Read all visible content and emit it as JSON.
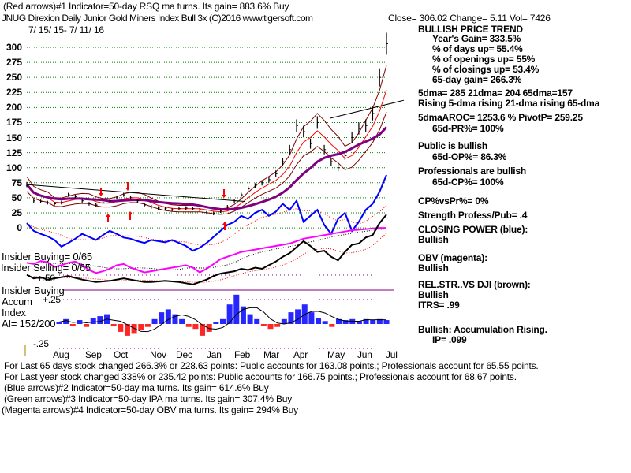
{
  "header": {
    "indicator1": "(Red arrows)#1 Indicator=50-day RSQ ma turns. Its gain= 883.6% Buy",
    "title": "JNUG   Direxion Daily Junior Gold Miners Index Bull 3x  (C)2016 www.tigersoft.com",
    "quote": "Close=  306.02  Change= 5.11 Vol= 7426",
    "date_range": "7/ 15/ 15- 7/ 11/ 16"
  },
  "right_panel": {
    "trend": "BULLISH PRICE TREND",
    "year_gain": "Year's Gain= 333.5%",
    "days_up": "% of days up= 55.4%",
    "openings_up": "% of openings up= 55%",
    "closings_up": "% of closings up= 53.4%",
    "gain_65": "65-day gain= 266.3%",
    "dma": "5dma= 285 21dma= 204 65dma=157",
    "rising": "Rising 5-dma  rising 21-dma  rising 65-dma",
    "aroc": "5dmaAROC= 1253.6 %  PivotP= 259.25",
    "pr": "65d-PR%= 100%",
    "public": "Public is bullish",
    "op": "65d-OP%= 86.3%",
    "pros": "Professionals are bullish",
    "cp": "65d-CP%= 100%",
    "cpvspr": "CP%vsPr%=  0%",
    "strength": "Strength Profess/Pub= .4",
    "closing_power": "CLOSING POWER (blue):",
    "closing_power_val": "Bullish",
    "obv": "OBV (magenta):",
    "obv_val": "Bullish",
    "relstr": "REL.STR..VS DJI (brown):",
    "relstr_val": "Bullish",
    "itrs": "ITRS= .99",
    "accum": "Bullish: Accumulation Rising.",
    "ip": "IP=  .099"
  },
  "left_labels": {
    "insider_buying": "Insider Buying= 0/65",
    "insider_selling": "Insider Selling= 0/65",
    "plus50": "+.50",
    "insider_buying2": "Insider Buying",
    "accum": "Accum",
    "plus25": "+.25",
    "index": "Index",
    "ai": "AI= 152/200",
    "minus25": "-.25"
  },
  "footer": {
    "line1": "For Last 65 days stock changed  266.3% or  228.63 points:  Public accounts for  163.08 points.;  Professionals account for  65.55 points.",
    "line2": "For Last year stock changed  338% or  235.42 points:  Public accounts for  166.75 points.;  Professionals account for  68.67 points.",
    "line3": "(Blue arrows)#2 Indicator=50-day ma turns. Its gain= 614.6% Buy",
    "line4": "(Green arrows)#3 Indicator=50-day IPA ma turns. Its gain= 307.4% Buy",
    "line5": "(Magenta arrows)#4 Indicator=50-day OBV ma turns. Its gain= 294% Buy"
  },
  "colors": {
    "price": "#000000",
    "cp": "#0000ff",
    "obv": "#ff00ff",
    "rs": "#000000",
    "ma21": "#ff0000",
    "ma65": "#800080",
    "band": "#800000",
    "grid": "#008000",
    "accum_pos": "#0000ff",
    "accum_neg": "#ff0000"
  },
  "chart_data": {
    "type": "line",
    "title": "JNUG Direxion Daily Junior Gold Miners Index Bull 3x",
    "y_ticks": [
      "300",
      "275",
      "250",
      "225",
      "200",
      "175",
      "150",
      "125",
      "100",
      "75",
      "50",
      "25",
      "0"
    ],
    "ylim": [
      0,
      300
    ],
    "months": [
      "Aug",
      "Sep",
      "Oct",
      "Nov",
      "Dec",
      "Jan",
      "Feb",
      "Mar",
      "Apr",
      "May",
      "Jun",
      "Jul"
    ],
    "price": [
      72,
      45,
      44,
      42,
      40,
      42,
      55,
      52,
      45,
      40,
      38,
      42,
      45,
      50,
      55,
      50,
      45,
      38,
      35,
      33,
      32,
      30,
      32,
      33,
      32,
      30,
      25,
      24,
      28,
      35,
      45,
      55,
      65,
      70,
      75,
      80,
      90,
      110,
      130,
      170,
      160,
      140,
      175,
      130,
      110,
      100,
      120,
      150,
      165,
      170,
      190,
      250,
      306
    ],
    "closing_power": [
      8,
      -5,
      -10,
      -14,
      -20,
      -31,
      -25,
      -18,
      -10,
      -15,
      -20,
      -12,
      -5,
      -10,
      -16,
      -18,
      -22,
      -25,
      -20,
      -22,
      -24,
      -20,
      -25,
      -30,
      -38,
      -33,
      -25,
      -15,
      -5,
      5,
      10,
      20,
      15,
      25,
      30,
      20,
      27,
      40,
      30,
      45,
      10,
      20,
      30,
      5,
      -10,
      15,
      25,
      -5,
      10,
      30,
      40,
      60,
      88
    ],
    "obv": [
      -58,
      -60,
      -55,
      -57,
      -65,
      -62,
      -58,
      -56,
      -62,
      -70,
      -75,
      -72,
      -68,
      -62,
      -60,
      -66,
      -70,
      -74,
      -72,
      -70,
      -68,
      -66,
      -64,
      -62,
      -66,
      -74,
      -68,
      -60,
      -52,
      -48,
      -44,
      -40,
      -38,
      -36,
      -34,
      -32,
      -30,
      -28,
      -26,
      -22,
      -18,
      -16,
      -14,
      -12,
      -10,
      -8,
      -6,
      -4,
      -3,
      -2,
      -1,
      0,
      0
    ],
    "rel_strength": [
      -78,
      -84,
      -82,
      -86,
      -84,
      -82,
      -80,
      -83,
      -86,
      -88,
      -90,
      -89,
      -88,
      -86,
      -84,
      -86,
      -88,
      -90,
      -90,
      -89,
      -88,
      -89,
      -90,
      -92,
      -94,
      -90,
      -86,
      -80,
      -76,
      -74,
      -72,
      -68,
      -70,
      -66,
      -68,
      -62,
      -56,
      -48,
      -42,
      -32,
      -22,
      -30,
      -40,
      -38,
      -48,
      -54,
      -40,
      -28,
      -26,
      -16,
      -12,
      8,
      22
    ],
    "accum_index": [
      0.02,
      0.05,
      -0.02,
      0.04,
      -0.03,
      0.06,
      0.08,
      0.1,
      -0.02,
      -0.08,
      -0.12,
      -0.1,
      -0.06,
      -0.03,
      0.05,
      0.12,
      0.15,
      0.1,
      0.05,
      -0.03,
      -0.05,
      -0.12,
      -0.08,
      0.02,
      0.05,
      0.2,
      0.3,
      0.18,
      0.1,
      0.05,
      -0.02,
      -0.05,
      -0.03,
      0.05,
      0.12,
      0.15,
      0.2,
      0.12,
      0.06,
      0.03,
      -0.03,
      0.05,
      0.04,
      0.05,
      0.03,
      0.05,
      0.04,
      0.05,
      0.04
    ]
  }
}
